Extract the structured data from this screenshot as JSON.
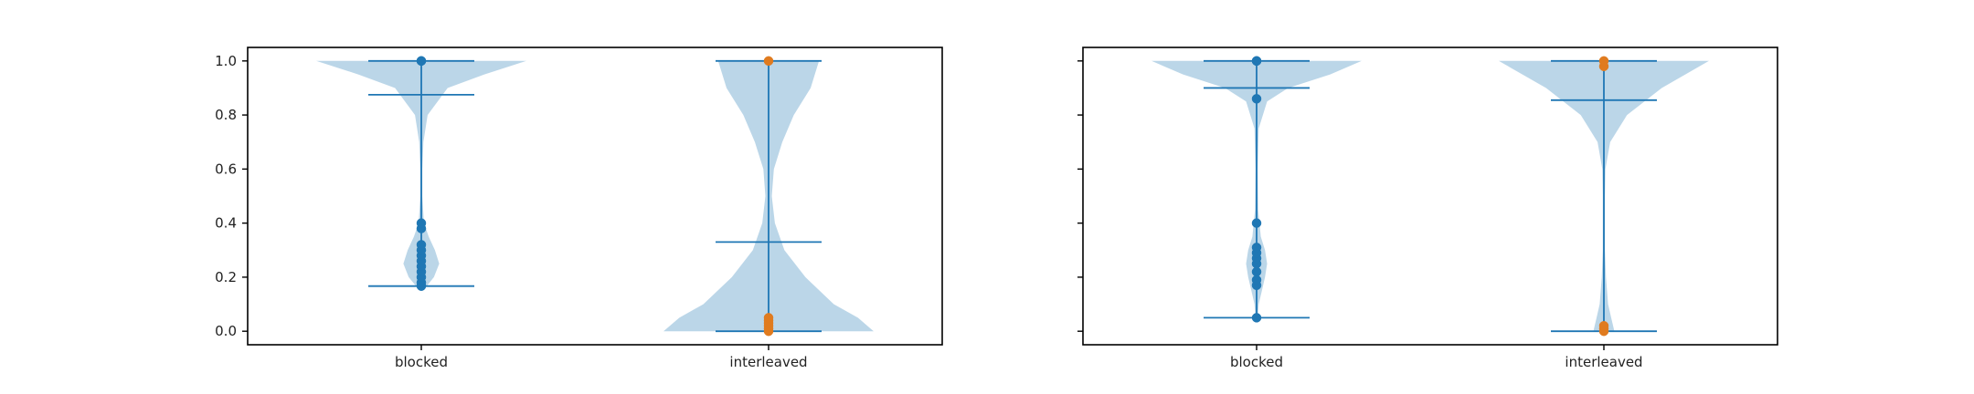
{
  "colors": {
    "violin_fill": "#1f77b4",
    "violin_fill_opacity": 0.3,
    "line": "#1f77b4",
    "points_blocked": "#1f77b4",
    "points_interleaved": "#e07b1f",
    "axes": "#000000"
  },
  "chart_data": [
    {
      "type": "violin",
      "categories": [
        "blocked",
        "interleaved"
      ],
      "ylim": [
        -0.05,
        1.05
      ],
      "yticks": [
        "0.0",
        "0.2",
        "0.4",
        "0.6",
        "0.8",
        "1.0"
      ],
      "show_ytick_labels": true,
      "grid": false,
      "series": [
        {
          "category": "blocked",
          "min": 0.167,
          "max": 1.0,
          "mean": 0.875,
          "density": [
            [
              0.167,
              0.05
            ],
            [
              0.2,
              0.12
            ],
            [
              0.25,
              0.17
            ],
            [
              0.3,
              0.13
            ],
            [
              0.35,
              0.07
            ],
            [
              0.4,
              0.025
            ],
            [
              0.5,
              0.01
            ],
            [
              0.6,
              0.01
            ],
            [
              0.7,
              0.02
            ],
            [
              0.8,
              0.06
            ],
            [
              0.9,
              0.25
            ],
            [
              0.95,
              0.6
            ],
            [
              1.0,
              1.0
            ]
          ],
          "points": [
            0.167,
            0.18,
            0.2,
            0.22,
            0.24,
            0.26,
            0.28,
            0.3,
            0.32,
            0.38,
            0.4,
            1.0,
            1.0
          ]
        },
        {
          "category": "interleaved",
          "min": 0.0,
          "max": 1.0,
          "mean": 0.33,
          "density": [
            [
              0.0,
              1.0
            ],
            [
              0.05,
              0.85
            ],
            [
              0.1,
              0.62
            ],
            [
              0.2,
              0.35
            ],
            [
              0.3,
              0.15
            ],
            [
              0.4,
              0.06
            ],
            [
              0.5,
              0.03
            ],
            [
              0.6,
              0.05
            ],
            [
              0.7,
              0.13
            ],
            [
              0.8,
              0.24
            ],
            [
              0.9,
              0.4
            ],
            [
              1.0,
              0.48
            ]
          ],
          "points": [
            0.0,
            0.01,
            0.02,
            0.03,
            0.04,
            0.05,
            1.0
          ]
        }
      ]
    },
    {
      "type": "violin",
      "categories": [
        "blocked",
        "interleaved"
      ],
      "ylim": [
        -0.05,
        1.05
      ],
      "yticks": [
        "0.0",
        "0.2",
        "0.4",
        "0.6",
        "0.8",
        "1.0"
      ],
      "show_ytick_labels": false,
      "grid": false,
      "series": [
        {
          "category": "blocked",
          "min": 0.05,
          "max": 1.0,
          "mean": 0.9,
          "density": [
            [
              0.05,
              0.01
            ],
            [
              0.1,
              0.02
            ],
            [
              0.15,
              0.05
            ],
            [
              0.2,
              0.08
            ],
            [
              0.25,
              0.1
            ],
            [
              0.3,
              0.08
            ],
            [
              0.35,
              0.04
            ],
            [
              0.45,
              0.015
            ],
            [
              0.6,
              0.01
            ],
            [
              0.75,
              0.02
            ],
            [
              0.85,
              0.1
            ],
            [
              0.9,
              0.3
            ],
            [
              0.95,
              0.7
            ],
            [
              1.0,
              1.0
            ]
          ],
          "points": [
            0.05,
            0.17,
            0.19,
            0.22,
            0.25,
            0.27,
            0.29,
            0.31,
            0.4,
            0.86,
            1.0,
            1.0
          ]
        },
        {
          "category": "interleaved",
          "min": 0.0,
          "max": 1.0,
          "mean": 0.855,
          "density": [
            [
              0.0,
              0.1
            ],
            [
              0.05,
              0.07
            ],
            [
              0.1,
              0.04
            ],
            [
              0.2,
              0.02
            ],
            [
              0.3,
              0.01
            ],
            [
              0.5,
              0.01
            ],
            [
              0.6,
              0.015
            ],
            [
              0.7,
              0.06
            ],
            [
              0.8,
              0.22
            ],
            [
              0.9,
              0.55
            ],
            [
              1.0,
              1.0
            ]
          ],
          "points": [
            0.0,
            0.01,
            0.02,
            0.98,
            1.0
          ]
        }
      ]
    }
  ]
}
